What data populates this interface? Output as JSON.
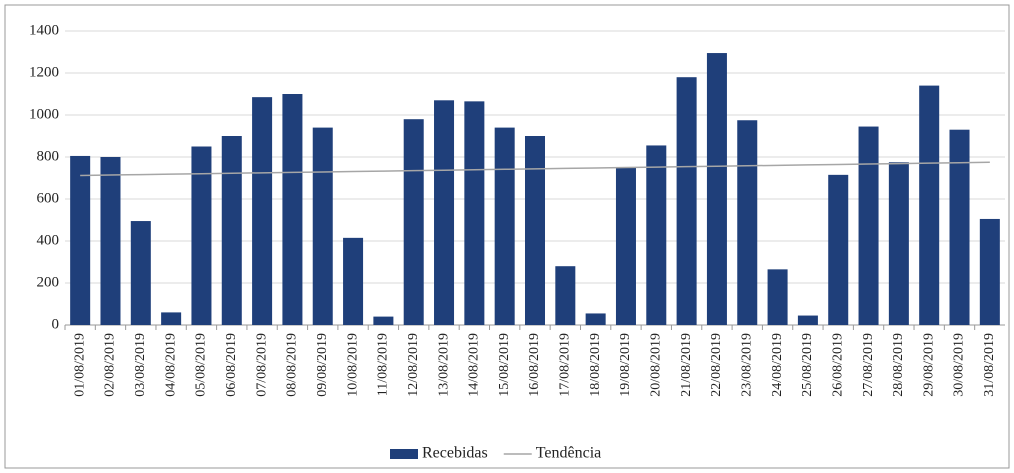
{
  "chart_data": {
    "type": "bar",
    "categories": [
      "01/08/2019",
      "02/08/2019",
      "03/08/2019",
      "04/08/2019",
      "05/08/2019",
      "06/08/2019",
      "07/08/2019",
      "08/08/2019",
      "09/08/2019",
      "10/08/2019",
      "11/08/2019",
      "12/08/2019",
      "13/08/2019",
      "14/08/2019",
      "15/08/2019",
      "16/08/2019",
      "17/08/2019",
      "18/08/2019",
      "19/08/2019",
      "20/08/2019",
      "21/08/2019",
      "22/08/2019",
      "23/08/2019",
      "24/08/2019",
      "25/08/2019",
      "26/08/2019",
      "27/08/2019",
      "28/08/2019",
      "29/08/2019",
      "30/08/2019",
      "31/08/2019"
    ],
    "series": [
      {
        "name": "Recebidas",
        "color": "#1f3f7a",
        "values": [
          805,
          800,
          495,
          60,
          850,
          900,
          1085,
          1100,
          940,
          415,
          40,
          980,
          1070,
          1065,
          940,
          900,
          280,
          55,
          750,
          855,
          1180,
          1295,
          975,
          265,
          45,
          715,
          945,
          775,
          1140,
          930,
          505
        ]
      },
      {
        "name": "Tendência",
        "type": "line",
        "color": "#a6a6a6",
        "values": [
          712,
          714.1,
          716.2,
          718.3,
          720.4,
          722.5,
          724.6,
          726.7,
          728.8,
          730.9,
          733,
          735.1,
          737.2,
          739.3,
          741.4,
          743.5,
          745.6,
          747.7,
          749.8,
          751.9,
          754,
          756.1,
          758.2,
          760.3,
          762.4,
          764.5,
          766.6,
          768.7,
          770.8,
          772.9,
          775
        ]
      }
    ],
    "ylim": [
      0,
      1400
    ],
    "yticks": [
      0,
      200,
      400,
      600,
      800,
      1000,
      1200,
      1400
    ],
    "grid": true,
    "legend": "bottom"
  }
}
